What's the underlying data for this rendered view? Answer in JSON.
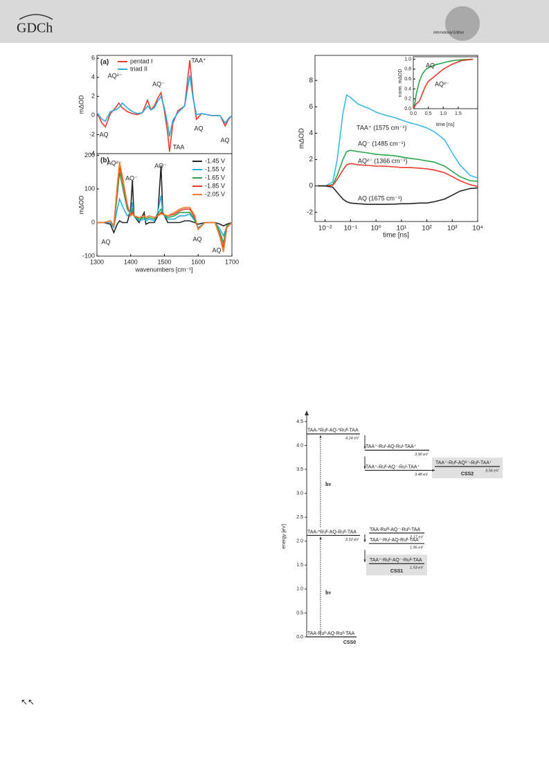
{
  "header": {
    "logo": "GDCh",
    "edition": "International Edition"
  },
  "chart_data": [
    {
      "type": "line",
      "panel_label": "(a)",
      "y_label": "mΔOD",
      "x": [
        1300,
        1315,
        1325,
        1340,
        1355,
        1365,
        1375,
        1390,
        1405,
        1420,
        1435,
        1450,
        1460,
        1470,
        1480,
        1490,
        1500,
        1510,
        1515,
        1525,
        1540,
        1560,
        1575,
        1585,
        1595,
        1610,
        1640,
        1665,
        1680,
        1690,
        1700
      ],
      "xlim": [
        1300,
        1700
      ],
      "ylim": [
        -4,
        6.3
      ],
      "yticks": [
        -4,
        -2,
        0,
        2,
        4,
        6
      ],
      "legend": "upper left",
      "series": [
        {
          "name": "pentad I",
          "color": "#e8392b",
          "values": [
            0.3,
            -0.8,
            -1.2,
            0.2,
            0.8,
            1.3,
            0.8,
            0.4,
            0.2,
            0.1,
            0.3,
            1.6,
            0.6,
            1.0,
            1.8,
            2.4,
            0.5,
            -2.0,
            -3.8,
            -0.8,
            0.5,
            1.0,
            5.8,
            2.0,
            -0.4,
            0.2,
            0,
            0,
            -1.1,
            -0.4,
            0
          ]
        },
        {
          "name": "triad II",
          "color": "#29abe2",
          "values": [
            0.3,
            -0.4,
            -0.6,
            0.4,
            0.6,
            0.8,
            1.3,
            0.8,
            0.4,
            0.2,
            0.3,
            1.0,
            0.6,
            0.8,
            1.5,
            2.0,
            0.8,
            -1.0,
            -2.2,
            -0.5,
            0.3,
            1.0,
            4.2,
            1.8,
            0.1,
            0.2,
            0,
            0,
            -0.8,
            -0.3,
            0
          ]
        }
      ],
      "annotations": [
        "AQ²⁻",
        "AQ⁻",
        "TAA⁺",
        "AQ",
        "TAA",
        "AQ",
        "AQ"
      ]
    },
    {
      "type": "line",
      "panel_label": "(b)",
      "y_label": "mΔOD",
      "x_label": "wavenumbers [cm⁻¹]",
      "x": [
        1300,
        1320,
        1340,
        1350,
        1360,
        1367,
        1375,
        1390,
        1400,
        1405,
        1410,
        1425,
        1440,
        1445,
        1455,
        1470,
        1480,
        1490,
        1495,
        1510,
        1530,
        1545,
        1560,
        1575,
        1590,
        1600,
        1620,
        1650,
        1665,
        1675,
        1685,
        1700
      ],
      "xlim": [
        1300,
        1700
      ],
      "xticks": [
        1300,
        1400,
        1500,
        1600,
        1700
      ],
      "ylim": [
        -100,
        205
      ],
      "yticks": [
        -100,
        0,
        100,
        200
      ],
      "legend": "upper right",
      "series": [
        {
          "name": "-1.45 V",
          "color": "#222222",
          "values": [
            0,
            0,
            -5,
            -30,
            -5,
            5,
            0,
            0,
            40,
            125,
            20,
            0,
            30,
            -5,
            0,
            0,
            20,
            170,
            30,
            0,
            0,
            0,
            5,
            5,
            0,
            -5,
            0,
            0,
            -5,
            -10,
            -5,
            0
          ]
        },
        {
          "name": "-1.55 V",
          "color": "#29abe2",
          "values": [
            0,
            0,
            0,
            -15,
            40,
            70,
            50,
            20,
            30,
            60,
            20,
            5,
            10,
            5,
            10,
            5,
            30,
            80,
            25,
            10,
            10,
            20,
            20,
            25,
            5,
            -15,
            0,
            0,
            -20,
            -40,
            -10,
            0
          ]
        },
        {
          "name": "-1.65 V",
          "color": "#2ca04c",
          "values": [
            0,
            0,
            5,
            -10,
            80,
            150,
            110,
            40,
            25,
            40,
            20,
            10,
            15,
            10,
            15,
            10,
            25,
            40,
            25,
            15,
            20,
            30,
            30,
            30,
            10,
            -20,
            0,
            0,
            -30,
            -60,
            -10,
            0
          ]
        },
        {
          "name": "-1.85 V",
          "color": "#e8392b",
          "values": [
            0,
            0,
            5,
            -10,
            100,
            165,
            130,
            50,
            20,
            30,
            20,
            15,
            20,
            15,
            20,
            15,
            20,
            30,
            25,
            20,
            25,
            35,
            40,
            40,
            15,
            -20,
            0,
            0,
            -40,
            -75,
            -15,
            0
          ]
        },
        {
          "name": "-2.05 V",
          "color": "#f07d2a",
          "values": [
            0,
            0,
            5,
            -10,
            110,
            180,
            140,
            55,
            20,
            25,
            20,
            15,
            20,
            15,
            20,
            15,
            20,
            25,
            25,
            20,
            30,
            40,
            45,
            45,
            20,
            -20,
            0,
            0,
            -45,
            -88,
            -15,
            0
          ]
        }
      ],
      "annotations": [
        "AQ²⁻",
        "AQ⁻",
        "AQ⁻",
        "AQ",
        "AQ",
        "AQ"
      ]
    },
    {
      "type": "line",
      "log_x": true,
      "y_label": "mΔOD",
      "x_label": "time [ns]",
      "x": [
        0.005,
        0.01,
        0.02,
        0.03,
        0.05,
        0.07,
        0.1,
        0.2,
        0.5,
        1,
        2,
        5,
        10,
        20,
        50,
        100,
        200,
        500,
        1000,
        2000,
        5000,
        10000
      ],
      "xlim": [
        0.004,
        10000
      ],
      "ylim": [
        -2.7,
        9.9
      ],
      "xticks": [
        {
          "value": 0.01,
          "label": "10⁻²"
        },
        {
          "value": 0.1,
          "label": "10⁻¹"
        },
        {
          "value": 1,
          "label": "10⁰"
        },
        {
          "value": 10,
          "label": "10¹"
        },
        {
          "value": 100,
          "label": "10²"
        },
        {
          "value": 1000,
          "label": "10³"
        },
        {
          "value": 10000,
          "label": "10⁴"
        }
      ],
      "yticks": [
        -2,
        0,
        2,
        4,
        6,
        8
      ],
      "series": [
        {
          "name": "TAA⁺ (1575 cm⁻¹)",
          "color": "#3bb8e8",
          "values": [
            0,
            0,
            0.3,
            2,
            5.5,
            6.9,
            6.7,
            6.2,
            5.9,
            5.6,
            5.4,
            5.2,
            5.0,
            4.8,
            4.6,
            4.4,
            4.1,
            3.5,
            2.5,
            1.6,
            0.8,
            0.6
          ]
        },
        {
          "name": "AQ⁻ (1485 cm⁻¹)",
          "color": "#28a54a",
          "values": [
            0,
            0,
            0.1,
            0.8,
            2.0,
            2.6,
            2.7,
            2.6,
            2.5,
            2.4,
            2.35,
            2.3,
            2.2,
            2.1,
            2.0,
            1.9,
            1.8,
            1.5,
            1.1,
            0.7,
            0.4,
            0.35
          ]
        },
        {
          "name": "AQ²⁻ (1366 cm⁻¹)",
          "color": "#e8392b",
          "values": [
            0,
            0,
            0.05,
            0.5,
            1.2,
            1.6,
            1.7,
            1.6,
            1.55,
            1.5,
            1.5,
            1.45,
            1.4,
            1.4,
            1.35,
            1.3,
            1.2,
            1.0,
            0.7,
            0.4,
            0.1,
            -0.05
          ]
        },
        {
          "name": "AQ (1675 cm⁻¹)",
          "color": "#222222",
          "values": [
            0,
            0,
            -0.1,
            -0.5,
            -1.0,
            -1.2,
            -1.3,
            -1.35,
            -1.4,
            -1.4,
            -1.4,
            -1.38,
            -1.35,
            -1.35,
            -1.3,
            -1.3,
            -1.2,
            -1.0,
            -0.7,
            -0.4,
            -0.2,
            -0.15
          ]
        }
      ]
    },
    {
      "type": "line",
      "y_label": "norm. mΔOD",
      "x_label": "time [ns]",
      "x": [
        0,
        0.05,
        0.1,
        0.2,
        0.3,
        0.4,
        0.5,
        0.7,
        1.0,
        1.3,
        1.6,
        2.0
      ],
      "xlim": [
        0,
        2.15
      ],
      "ylim": [
        0,
        1.05
      ],
      "xticks": [
        {
          "value": 0,
          "label": "0.0"
        },
        0.5,
        {
          "value": 1,
          "label": "1.0"
        },
        1.5
      ],
      "yticks": [
        {
          "value": 0,
          "label": "0.0"
        },
        0.2,
        0.4,
        0.6,
        0.8,
        {
          "value": 1,
          "label": "1.0"
        }
      ],
      "series": [
        {
          "name": "AQ⁻",
          "color": "#28a54a",
          "values": [
            0,
            0.1,
            0.3,
            0.55,
            0.7,
            0.78,
            0.83,
            0.88,
            0.93,
            0.97,
            0.99,
            1.0
          ]
        },
        {
          "name": "AQ²⁻",
          "color": "#e8392b",
          "values": [
            0,
            0.05,
            0.1,
            0.15,
            0.3,
            0.45,
            0.55,
            0.65,
            0.8,
            0.9,
            0.97,
            1.0
          ]
        }
      ]
    },
    {
      "type": "energy-diagram",
      "y_label": "energy [eV]",
      "ylim": [
        0,
        4.6
      ],
      "yticks": [
        {
          "value": 0,
          "label": "0.0"
        },
        0.5,
        {
          "value": 1,
          "label": "1.0"
        },
        1.5,
        {
          "value": 2,
          "label": "2.0"
        },
        2.5,
        {
          "value": 3,
          "label": "3.0"
        },
        3.5,
        {
          "value": 4,
          "label": "4.0"
        },
        4.5
      ],
      "excitation_label": "hν",
      "levels": [
        {
          "label": "TAA-Ruᴵᴵ-AQ-Ruᴵᴵ-TAA",
          "energy": 0,
          "state": "CSS0"
        },
        {
          "label": "TAA-*Ruᴵᴵ-AQ-Ruᴵᴵ-TAA",
          "energy": 2.12,
          "energy_label": "2.12 eV"
        },
        {
          "label": "TAA-*Ruᴵᴵ-AQ-*Ruᴵᴵ-TAA",
          "energy": 4.24,
          "energy_label": "4.24 eV"
        },
        {
          "label": "TAA-Ruᴵᴵᴵ-AQ⁻-Ruᴵᴵ-TAA",
          "energy": 2.17,
          "energy_label": "2.17 eV"
        },
        {
          "label": "TAA⁺-Ruᴵ-AQ-Ruᴵᴵ-TAA",
          "energy": 1.95,
          "energy_label": "1.95 eV"
        },
        {
          "label": "TAA⁺-Ruᴵᴵ-AQ⁻-Ruᴵᴵ-TAA",
          "energy": 1.53,
          "energy_label": "1.53 eV",
          "state": "CSS1"
        },
        {
          "label": "TAA⁺-Ruᴵ-AQ-Ruᴵ-TAA⁺",
          "energy": 3.9,
          "energy_label": "3.90 eV"
        },
        {
          "label": "TAA⁺-Ruᴵᴵ-AQ⁻-Ruᴵ-TAA⁺",
          "energy": 3.48,
          "energy_label": "3.48 eV"
        },
        {
          "label": "TAA⁺-Ruᴵᴵ-AQ²⁻-Ruᴵᴵ-TAA⁺",
          "energy": 3.56,
          "energy_label": "3.56 eV",
          "state": "CSS2"
        }
      ]
    }
  ],
  "footer_mark": "↖↖"
}
